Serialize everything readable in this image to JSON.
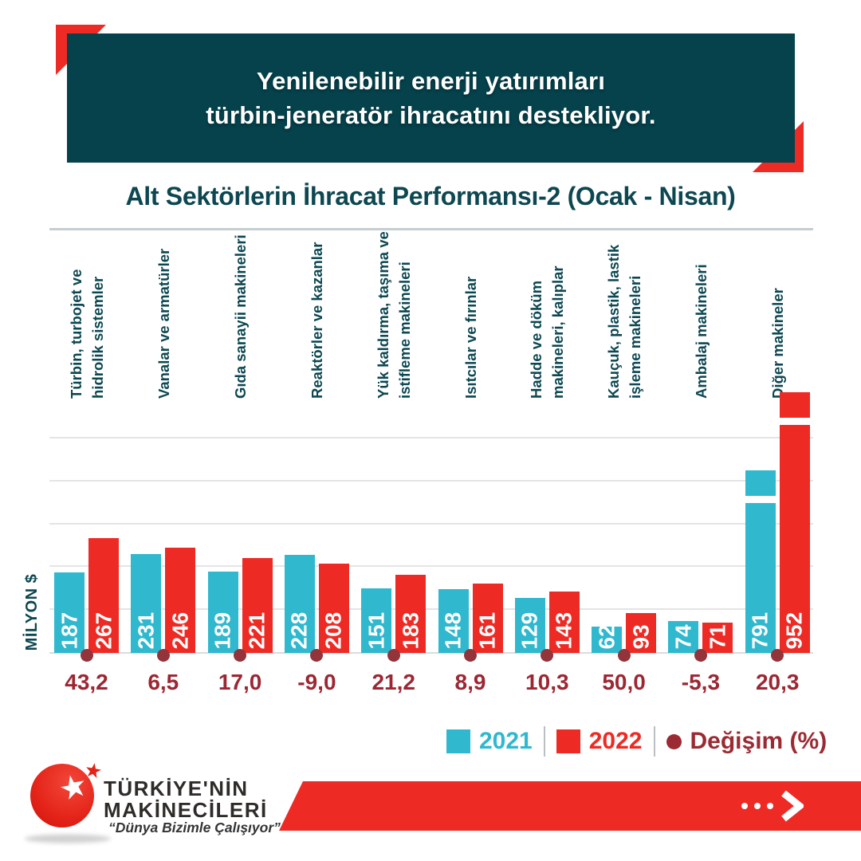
{
  "header": {
    "line1": "Yenilenebilir enerji yatırımları",
    "line2": "türbin-jeneratör ihracatını destekliyor."
  },
  "chart_data": {
    "type": "bar",
    "title": "Alt Sektörlerin İhracat Performansı-2 (Ocak - Nisan)",
    "ylabel": "MİLYON $",
    "ylim": [
      0,
      500
    ],
    "grid_step": 100,
    "grid_on": true,
    "categories": [
      "Türbin, turbojet ve\nhidrolik sistemler",
      "Vanalar ve armatürler",
      "Gıda sanayii makineleri",
      "Reaktörler ve kazanlar",
      "Yük kaldırma, taşıma ve\nistifleme makineleri",
      "Isıtcılar ve fırınlar",
      "Hadde ve döküm\nmakineleri, kalıplar",
      "Kauçuk, plastik, lastik\nişleme makineleri",
      "Ambalaj makineleri",
      "Diğer makineler"
    ],
    "series": [
      {
        "name": "2021",
        "color": "#2fb8ce",
        "values": [
          187,
          231,
          189,
          228,
          151,
          148,
          129,
          62,
          74,
          791
        ]
      },
      {
        "name": "2022",
        "color": "#ee2a24",
        "values": [
          267,
          246,
          221,
          208,
          183,
          161,
          143,
          93,
          71,
          952
        ]
      }
    ],
    "change_series": {
      "name": "Değişim (%)",
      "color": "#93333a",
      "values": [
        "43,2",
        "6,5",
        "17,0",
        "-9,0",
        "21,2",
        "8,9",
        "10,3",
        "50,0",
        "-5,3",
        "20,3"
      ]
    },
    "axis_break_on": "Diğer makineler"
  },
  "legend": {
    "items": [
      {
        "label": "2021",
        "marker": "square",
        "color": "#2fb8ce"
      },
      {
        "label": "2022",
        "marker": "square",
        "color": "#ee2a24"
      },
      {
        "label": "Değişim (%)",
        "marker": "dot",
        "color": "#9b2a33"
      }
    ]
  },
  "footer": {
    "brand_line1": "TÜRKİYE'NİN",
    "brand_line2": "MAKİNECİLERİ",
    "brand_tagline": "“Dünya Bizimle Çalışıyor”"
  },
  "colors": {
    "header_bg": "#05424c",
    "accent_red": "#ee2a24",
    "teal": "#2fb8ce",
    "dark_red": "#9b2a33",
    "text_teal": "#0d4751",
    "gridline": "#e4e4e4"
  }
}
